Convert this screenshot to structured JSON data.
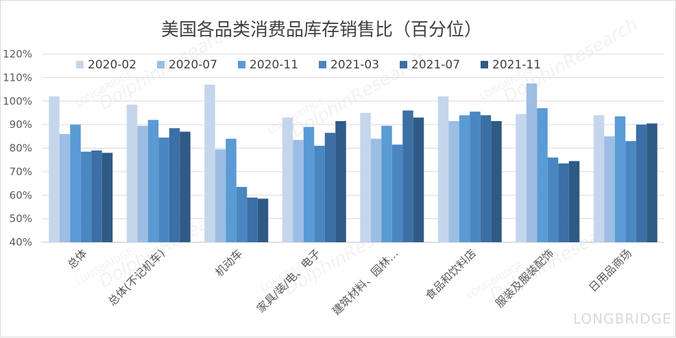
{
  "chart_data": {
    "type": "bar",
    "title": "美国各品类消费品库存销售比（百分位）",
    "categories": [
      "总体",
      "总体(不记机车)",
      "机动车",
      "家具/装/电、电子",
      "建筑材料、园林…",
      "食品和饮料店",
      "服装及服装配饰",
      "日用品商场"
    ],
    "series": [
      {
        "name": "2020-02",
        "color": "#c5d6ec",
        "values": [
          102,
          98.5,
          107,
          93,
          95,
          102,
          94.5,
          94
        ]
      },
      {
        "name": "2020-07",
        "color": "#9dbde4",
        "values": [
          86,
          89.5,
          79.5,
          83.5,
          84,
          91.5,
          107.5,
          85
        ]
      },
      {
        "name": "2020-11",
        "color": "#5a9bd5",
        "values": [
          90,
          92,
          84,
          89,
          89.5,
          94,
          97,
          93.5
        ]
      },
      {
        "name": "2021-03",
        "color": "#4a86c2",
        "values": [
          78.5,
          84.5,
          63.5,
          81,
          81.5,
          95.5,
          76,
          83
        ]
      },
      {
        "name": "2021-07",
        "color": "#3b6fa5",
        "values": [
          79,
          88.5,
          59,
          86.5,
          96,
          94,
          73.5,
          90
        ]
      },
      {
        "name": "2021-11",
        "color": "#2f5a86",
        "values": [
          78,
          87,
          58.5,
          91.5,
          93,
          91.5,
          74.5,
          90.5
        ]
      }
    ],
    "ylim": [
      40,
      120
    ],
    "yticks": [
      "40%",
      "50%",
      "60%",
      "70%",
      "80%",
      "90%",
      "100%",
      "110%",
      "120%"
    ],
    "grid": true,
    "legend": "top"
  },
  "watermark": {
    "text": "DolphinResearch",
    "sub": "LONGBRIDGE",
    "brand": "LONGBRIDGE"
  }
}
